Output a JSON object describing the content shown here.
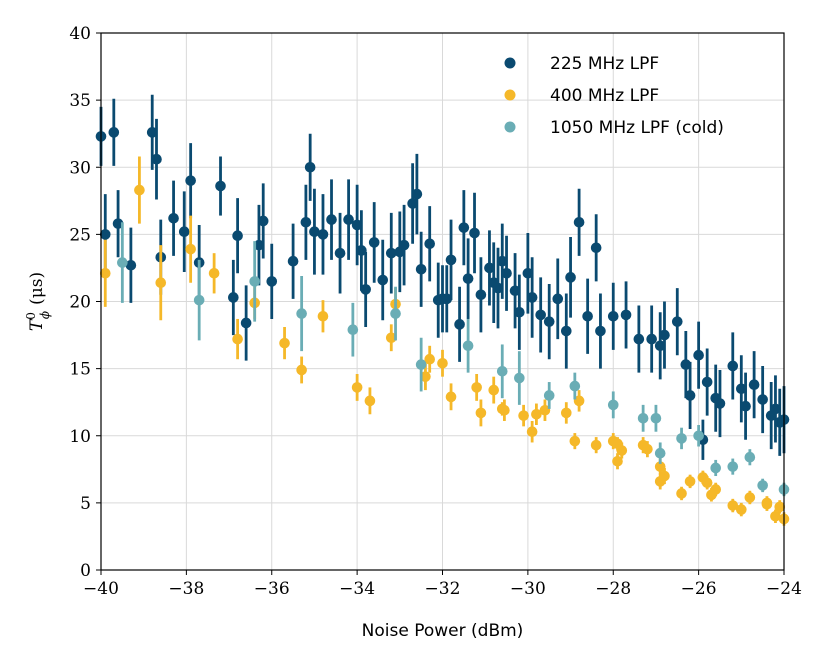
{
  "chart_data": {
    "type": "scatter",
    "title": "",
    "xlabel": "Noise Power (dBm)",
    "ylabel": "T_φ^0 (μs)",
    "ylabel_parts": {
      "symbol": "T",
      "sup": "0",
      "sub": "ϕ",
      "units": "(μs)"
    },
    "xlim": [
      -40,
      -24
    ],
    "ylim": [
      0,
      40
    ],
    "xticks": [
      -40,
      -38,
      -36,
      -34,
      -32,
      -30,
      -28,
      -26,
      -24
    ],
    "xtick_labels": [
      "−40",
      "−38",
      "−36",
      "−34",
      "−32",
      "−30",
      "−28",
      "−26",
      "−24"
    ],
    "yticks": [
      0,
      5,
      10,
      15,
      20,
      25,
      30,
      35,
      40
    ],
    "ytick_labels": [
      "0",
      "5",
      "10",
      "15",
      "20",
      "25",
      "30",
      "35",
      "40"
    ],
    "grid": true,
    "legend_position": "top-right",
    "series": [
      {
        "name": "225 MHz LPF",
        "color": "#0a4a70",
        "points": [
          [
            -40.0,
            32.3,
            2.2
          ],
          [
            -39.9,
            25.0,
            3.0
          ],
          [
            -39.7,
            32.6,
            2.5
          ],
          [
            -39.6,
            25.8,
            2.5
          ],
          [
            -39.3,
            22.7,
            2.8
          ],
          [
            -38.8,
            32.6,
            2.8
          ],
          [
            -38.7,
            30.6,
            3.0
          ],
          [
            -38.6,
            23.3,
            2.8
          ],
          [
            -38.3,
            26.2,
            2.8
          ],
          [
            -38.05,
            25.2,
            3.0
          ],
          [
            -37.9,
            29.0,
            2.8
          ],
          [
            -37.7,
            22.9,
            2.8
          ],
          [
            -37.2,
            28.6,
            2.2
          ],
          [
            -36.9,
            20.3,
            2.8
          ],
          [
            -36.8,
            24.9,
            2.8
          ],
          [
            -36.6,
            18.4,
            2.8
          ],
          [
            -36.3,
            24.2,
            3.0
          ],
          [
            -36.2,
            26.0,
            2.8
          ],
          [
            -36.0,
            21.5,
            2.8
          ],
          [
            -35.5,
            23.0,
            2.8
          ],
          [
            -35.2,
            25.9,
            2.8
          ],
          [
            -35.1,
            30.0,
            2.5
          ],
          [
            -35.0,
            25.2,
            3.2
          ],
          [
            -34.8,
            25.0,
            3.0
          ],
          [
            -34.6,
            26.1,
            3.0
          ],
          [
            -34.4,
            23.6,
            3.0
          ],
          [
            -34.2,
            26.1,
            3.0
          ],
          [
            -34.0,
            25.7,
            3.0
          ],
          [
            -33.9,
            23.8,
            3.0
          ],
          [
            -33.8,
            20.9,
            2.8
          ],
          [
            -33.6,
            24.4,
            3.0
          ],
          [
            -33.4,
            21.6,
            3.0
          ],
          [
            -33.2,
            23.6,
            3.0
          ],
          [
            -33.0,
            23.7,
            3.0
          ],
          [
            -32.9,
            24.2,
            3.0
          ],
          [
            -32.7,
            27.3,
            3.0
          ],
          [
            -32.6,
            28.0,
            3.0
          ],
          [
            -32.5,
            22.4,
            2.8
          ],
          [
            -32.3,
            24.3,
            2.8
          ],
          [
            -32.1,
            20.1,
            2.8
          ],
          [
            -32.0,
            20.2,
            2.5
          ],
          [
            -31.9,
            20.2,
            2.5
          ],
          [
            -31.8,
            23.1,
            3.0
          ],
          [
            -31.6,
            18.3,
            2.8
          ],
          [
            -31.5,
            25.5,
            2.8
          ],
          [
            -31.4,
            21.7,
            3.0
          ],
          [
            -31.25,
            25.1,
            3.0
          ],
          [
            -31.1,
            20.5,
            2.8
          ],
          [
            -30.9,
            22.5,
            2.8
          ],
          [
            -30.8,
            21.4,
            3.0
          ],
          [
            -30.7,
            21.0,
            3.0
          ],
          [
            -30.6,
            23.0,
            2.8
          ],
          [
            -30.5,
            22.1,
            2.8
          ],
          [
            -30.3,
            20.8,
            2.8
          ],
          [
            -30.2,
            19.2,
            2.8
          ],
          [
            -30.0,
            22.1,
            3.0
          ],
          [
            -29.9,
            20.3,
            3.0
          ],
          [
            -29.7,
            19.0,
            2.8
          ],
          [
            -29.5,
            18.5,
            2.8
          ],
          [
            -29.3,
            20.2,
            3.0
          ],
          [
            -29.1,
            17.8,
            2.8
          ],
          [
            -29.0,
            21.8,
            3.0
          ],
          [
            -28.8,
            25.9,
            2.5
          ],
          [
            -28.6,
            18.9,
            2.8
          ],
          [
            -28.4,
            24.0,
            2.5
          ],
          [
            -28.3,
            17.8,
            2.8
          ],
          [
            -28.0,
            18.9,
            2.5
          ],
          [
            -27.7,
            19.0,
            2.5
          ],
          [
            -27.4,
            17.2,
            2.5
          ],
          [
            -27.1,
            17.2,
            2.5
          ],
          [
            -26.9,
            16.7,
            2.5
          ],
          [
            -26.8,
            17.5,
            2.5
          ],
          [
            -26.5,
            18.5,
            2.5
          ],
          [
            -26.3,
            15.3,
            2.5
          ],
          [
            -26.2,
            13.0,
            2.5
          ],
          [
            -26.0,
            16.0,
            2.5
          ],
          [
            -25.8,
            14.0,
            2.5
          ],
          [
            -25.6,
            12.8,
            2.5
          ],
          [
            -25.5,
            12.4,
            2.5
          ],
          [
            -25.2,
            15.2,
            2.5
          ],
          [
            -25.0,
            13.5,
            2.5
          ],
          [
            -24.9,
            12.2,
            2.5
          ],
          [
            -24.7,
            13.8,
            2.5
          ],
          [
            -24.5,
            12.7,
            2.5
          ],
          [
            -24.3,
            11.5,
            2.5
          ],
          [
            -24.2,
            12.0,
            2.5
          ],
          [
            -24.1,
            11.0,
            2.5
          ],
          [
            -24.0,
            11.2,
            2.5
          ],
          [
            -25.9,
            9.7,
            1.5
          ]
        ]
      },
      {
        "name": "400 MHz LPF",
        "color": "#f5b829",
        "points": [
          [
            -39.9,
            22.1,
            2.5
          ],
          [
            -39.1,
            28.3,
            2.5
          ],
          [
            -38.6,
            21.4,
            2.8
          ],
          [
            -37.9,
            23.9,
            2.5
          ],
          [
            -37.35,
            22.1,
            1.5
          ],
          [
            -36.8,
            17.2,
            1.5
          ],
          [
            -36.4,
            19.9,
            1.2
          ],
          [
            -35.7,
            16.9,
            1.2
          ],
          [
            -35.3,
            14.9,
            1.0
          ],
          [
            -34.8,
            18.9,
            1.2
          ],
          [
            -34.0,
            13.6,
            1.0
          ],
          [
            -33.7,
            12.6,
            1.0
          ],
          [
            -33.2,
            17.3,
            1.0
          ],
          [
            -33.1,
            19.8,
            1.2
          ],
          [
            -32.4,
            14.4,
            1.0
          ],
          [
            -32.3,
            15.7,
            1.0
          ],
          [
            -32.0,
            15.4,
            1.0
          ],
          [
            -31.8,
            12.9,
            1.0
          ],
          [
            -31.2,
            13.6,
            1.0
          ],
          [
            -31.1,
            11.7,
            1.0
          ],
          [
            -30.8,
            13.4,
            1.0
          ],
          [
            -30.55,
            11.9,
            0.8
          ],
          [
            -30.1,
            11.5,
            0.8
          ],
          [
            -29.9,
            10.3,
            0.8
          ],
          [
            -29.8,
            11.6,
            0.8
          ],
          [
            -29.6,
            11.9,
            0.8
          ],
          [
            -29.1,
            11.7,
            0.8
          ],
          [
            -28.9,
            9.6,
            0.6
          ],
          [
            -28.8,
            12.6,
            0.8
          ],
          [
            -28.4,
            9.3,
            0.6
          ],
          [
            -28.0,
            9.6,
            0.6
          ],
          [
            -27.9,
            8.1,
            0.6
          ],
          [
            -27.8,
            8.9,
            0.6
          ],
          [
            -27.3,
            9.3,
            0.6
          ],
          [
            -27.2,
            9.0,
            0.6
          ],
          [
            -26.9,
            7.7,
            0.6
          ],
          [
            -26.9,
            6.6,
            0.6
          ],
          [
            -26.8,
            7.0,
            0.6
          ],
          [
            -26.2,
            6.6,
            0.5
          ],
          [
            -25.9,
            6.9,
            0.5
          ],
          [
            -25.8,
            6.5,
            0.5
          ],
          [
            -25.7,
            5.6,
            0.5
          ],
          [
            -25.6,
            6.0,
            0.5
          ],
          [
            -25.2,
            4.8,
            0.5
          ],
          [
            -25.0,
            4.5,
            0.5
          ],
          [
            -24.8,
            5.4,
            0.5
          ],
          [
            -24.4,
            4.9,
            0.5
          ],
          [
            -24.2,
            4.0,
            0.5
          ],
          [
            -24.0,
            3.8,
            0.5
          ],
          [
            -24.4,
            5.0,
            0.5
          ],
          [
            -24.1,
            4.7,
            0.5
          ],
          [
            -26.4,
            5.7,
            0.5
          ],
          [
            -27.9,
            9.4,
            0.5
          ],
          [
            -30.6,
            12.0,
            0.5
          ]
        ]
      },
      {
        "name": "1050 MHz LPF (cold)",
        "color": "#6aadb5",
        "points": [
          [
            -39.5,
            22.9,
            3.0
          ],
          [
            -37.7,
            20.1,
            3.0
          ],
          [
            -36.4,
            21.5,
            3.0
          ],
          [
            -35.3,
            19.1,
            2.8
          ],
          [
            -34.1,
            17.9,
            2.0
          ],
          [
            -33.1,
            19.1,
            2.0
          ],
          [
            -32.5,
            15.3,
            2.0
          ],
          [
            -31.4,
            16.7,
            2.0
          ],
          [
            -30.6,
            14.8,
            2.0
          ],
          [
            -30.2,
            14.3,
            2.0
          ],
          [
            -29.5,
            13.0,
            1.0
          ],
          [
            -28.9,
            13.7,
            1.0
          ],
          [
            -28.0,
            12.3,
            1.0
          ],
          [
            -27.3,
            11.3,
            1.0
          ],
          [
            -27.0,
            11.3,
            1.0
          ],
          [
            -26.9,
            8.7,
            0.8
          ],
          [
            -26.4,
            9.8,
            0.8
          ],
          [
            -26.0,
            10.0,
            0.8
          ],
          [
            -25.6,
            7.6,
            0.6
          ],
          [
            -25.2,
            7.7,
            0.6
          ],
          [
            -24.8,
            8.4,
            0.6
          ],
          [
            -24.5,
            6.3,
            0.5
          ],
          [
            -24.0,
            6.0,
            0.5
          ]
        ]
      }
    ]
  }
}
